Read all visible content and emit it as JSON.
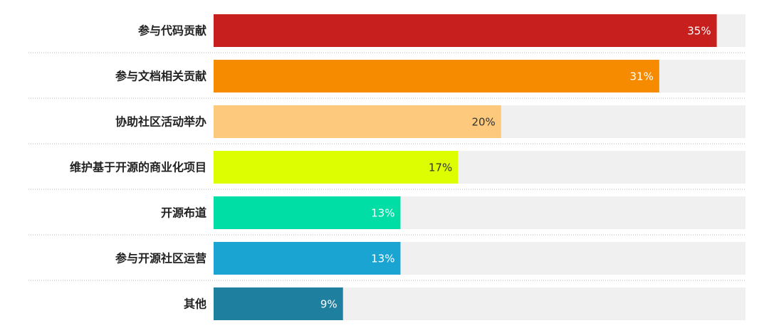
{
  "chart_data": {
    "type": "hbar",
    "categories": [
      "参与代码贡献",
      "参与文档相关贡献",
      "协助社区活动举办",
      "维护基于开源的商业化项目",
      "开源布道",
      "参与开源社区运营",
      "其他"
    ],
    "values": [
      35,
      31,
      20,
      17,
      13,
      13,
      9
    ],
    "value_labels": [
      "35%",
      "31%",
      "20%",
      "17%",
      "13%",
      "13%",
      "9%"
    ],
    "colors": [
      "#c71f1e",
      "#f78b00",
      "#fdc97c",
      "#dcfe00",
      "#00dea5",
      "#19a4d2",
      "#1e7f9f"
    ],
    "track_color": "#f0f0f0",
    "xlim": [
      0,
      37
    ]
  }
}
